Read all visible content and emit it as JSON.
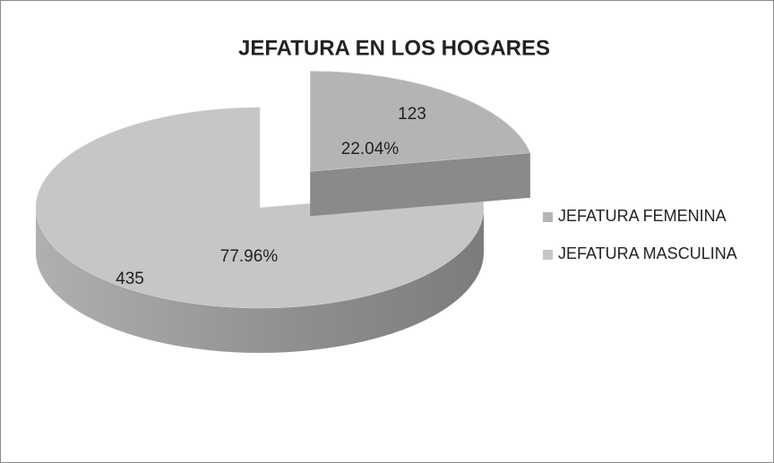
{
  "chart_data": {
    "type": "pie3d",
    "title": "JEFATURA EN LOS HOGARES",
    "categories": [
      "JEFATURA FEMENINA",
      "JEFATURA MASCULINA"
    ],
    "values": [
      123,
      435
    ],
    "percentages": [
      22.04,
      77.96
    ],
    "percentage_labels": [
      "22.04%",
      "77.96%"
    ],
    "colors": [
      "#b4b4b4",
      "#c6c6c6"
    ],
    "exploded": [
      true,
      false
    ],
    "legend": "right"
  }
}
